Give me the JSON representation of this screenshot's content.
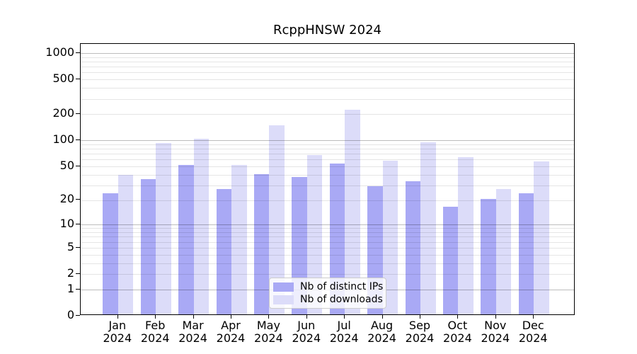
{
  "chart_data": {
    "type": "bar",
    "title": "RcppHNSW 2024",
    "year": "2024",
    "categories": [
      "Jan",
      "Feb",
      "Mar",
      "Apr",
      "May",
      "Jun",
      "Jul",
      "Aug",
      "Sep",
      "Oct",
      "Nov",
      "Dec"
    ],
    "series": [
      {
        "name": "Nb of distinct IPs",
        "color": "#a9a9f5",
        "values": [
          23,
          34,
          50,
          26,
          39,
          36,
          52,
          28,
          32,
          16,
          20,
          23
        ]
      },
      {
        "name": "Nb of downloads",
        "color": "#dcdcf9",
        "values": [
          38,
          90,
          100,
          50,
          143,
          65,
          215,
          56,
          91,
          62,
          26,
          55
        ]
      }
    ],
    "yscale": "log1p",
    "yticks": [
      0,
      1,
      2,
      5,
      10,
      20,
      50,
      100,
      200,
      500,
      1000
    ],
    "ylim": [
      0,
      1273
    ],
    "xlabel": "",
    "ylabel": "",
    "grid": "major-and-minor-horizontal",
    "legend_position": "lower-center-inside"
  }
}
